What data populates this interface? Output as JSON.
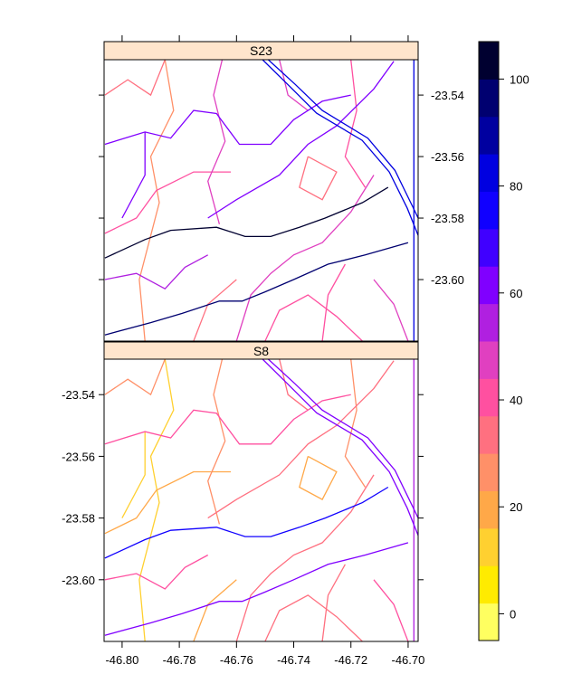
{
  "panels": [
    {
      "label": "S23",
      "key": "S23"
    },
    {
      "label": "S8",
      "key": "S8"
    }
  ],
  "x_axis": {
    "ticks": [
      -46.8,
      -46.78,
      -46.76,
      -46.74,
      -46.72,
      -46.7
    ],
    "tick_labels": [
      "-46.80",
      "-46.78",
      "-46.76",
      "-46.74",
      "-46.72",
      "-46.70"
    ],
    "range": [
      -46.8063,
      -46.6965
    ]
  },
  "y_axis": {
    "ticks": [
      -23.54,
      -23.56,
      -23.58,
      -23.6
    ],
    "tick_labels": [
      "-23.54",
      "-23.56",
      "-23.58",
      "-23.60"
    ],
    "range": [
      -23.62,
      -23.5285
    ]
  },
  "strip_color": "#FFE5CC",
  "colorkey": {
    "range": [
      -5,
      107
    ],
    "ticks": [
      0,
      20,
      40,
      60,
      80,
      100
    ],
    "tick_labels": [
      "0",
      "20",
      "40",
      "60",
      "80",
      "100"
    ],
    "colors": [
      "#FFFF60",
      "#FFEB00",
      "#FFD030",
      "#FFA848",
      "#FF9068",
      "#FF7080",
      "#FF50A0",
      "#E040C0",
      "#B020E0",
      "#8000FF",
      "#4000FF",
      "#1000FF",
      "#0000E0",
      "#0000A0",
      "#000070",
      "#000030"
    ]
  },
  "roads": [
    {
      "coords": [
        [
          -46.806,
          -23.593
        ],
        [
          -46.792,
          -23.587
        ],
        [
          -46.783,
          -23.584
        ],
        [
          -46.767,
          -23.583
        ],
        [
          -46.757,
          -23.586
        ],
        [
          -46.748,
          -23.586
        ],
        [
          -46.738,
          -23.583
        ],
        [
          -46.729,
          -23.58
        ],
        [
          -46.716,
          -23.575
        ],
        [
          -46.707,
          -23.57
        ]
      ],
      "S23": 100,
      "S8": 72
    },
    {
      "coords": [
        [
          -46.806,
          -23.618
        ],
        [
          -46.79,
          -23.614
        ],
        [
          -46.779,
          -23.611
        ],
        [
          -46.766,
          -23.607
        ],
        [
          -46.758,
          -23.607
        ],
        [
          -46.75,
          -23.604
        ],
        [
          -46.74,
          -23.6
        ],
        [
          -46.728,
          -23.595
        ],
        [
          -46.715,
          -23.592
        ],
        [
          -46.7,
          -23.588
        ]
      ],
      "S23": 95,
      "S8": 60
    },
    {
      "coords": [
        [
          -46.7509,
          -23.5285
        ],
        [
          -46.7415,
          -23.5371
        ],
        [
          -46.732,
          -23.5459
        ],
        [
          -46.7161,
          -23.5547
        ],
        [
          -46.7066,
          -23.565
        ],
        [
          -46.7003,
          -23.5768
        ],
        [
          -46.6965,
          -23.5856
        ]
      ],
      "S23": 80,
      "S8": 62
    },
    {
      "coords": [
        [
          -46.7489,
          -23.5285
        ],
        [
          -46.7395,
          -23.5365
        ],
        [
          -46.73,
          -23.545
        ],
        [
          -46.7141,
          -23.554
        ],
        [
          -46.7046,
          -23.5645
        ],
        [
          -46.6983,
          -23.5765
        ],
        [
          -46.6965,
          -23.58
        ]
      ],
      "S23": 80,
      "S8": 60
    },
    {
      "coords": [
        [
          -46.698,
          -23.5285
        ],
        [
          -46.698,
          -23.62
        ]
      ],
      "S23": 85,
      "S8": 55
    },
    {
      "coords": [
        [
          -46.806,
          -23.556
        ],
        [
          -46.792,
          -23.552
        ],
        [
          -46.783,
          -23.554
        ],
        [
          -46.775,
          -23.545
        ],
        [
          -46.767,
          -23.546
        ],
        [
          -46.759,
          -23.556
        ],
        [
          -46.748,
          -23.556
        ],
        [
          -46.74,
          -23.548
        ],
        [
          -46.73,
          -23.542
        ],
        [
          -46.72,
          -23.54
        ]
      ],
      "S23": 62,
      "S8": 38
    },
    {
      "coords": [
        [
          -46.792,
          -23.552
        ],
        [
          -46.792,
          -23.566
        ],
        [
          -46.8,
          -23.58
        ]
      ],
      "S23": 60,
      "S8": 12
    },
    {
      "coords": [
        [
          -46.77,
          -23.58
        ],
        [
          -46.76,
          -23.574
        ],
        [
          -46.745,
          -23.566
        ],
        [
          -46.735,
          -23.556
        ],
        [
          -46.725,
          -23.55
        ],
        [
          -46.712,
          -23.538
        ],
        [
          -46.705,
          -23.529
        ]
      ],
      "S23": 58,
      "S8": 30
    },
    {
      "coords": [
        [
          -46.785,
          -23.5285
        ],
        [
          -46.782,
          -23.545
        ],
        [
          -46.79,
          -23.56
        ],
        [
          -46.787,
          -23.575
        ],
        [
          -46.794,
          -23.6
        ],
        [
          -46.792,
          -23.62
        ]
      ],
      "S23": 28,
      "S8": 10
    },
    {
      "coords": [
        [
          -46.806,
          -23.6
        ],
        [
          -46.795,
          -23.598
        ],
        [
          -46.785,
          -23.603
        ],
        [
          -46.778,
          -23.596
        ],
        [
          -46.77,
          -23.592
        ]
      ],
      "S23": 55,
      "S8": 40
    },
    {
      "coords": [
        [
          -46.765,
          -23.5285
        ],
        [
          -46.768,
          -23.54
        ],
        [
          -46.764,
          -23.555
        ],
        [
          -46.77,
          -23.568
        ],
        [
          -46.766,
          -23.582
        ]
      ],
      "S23": 45,
      "S8": 25
    },
    {
      "coords": [
        [
          -46.76,
          -23.62
        ],
        [
          -46.755,
          -23.605
        ],
        [
          -46.748,
          -23.598
        ],
        [
          -46.74,
          -23.592
        ],
        [
          -46.73,
          -23.588
        ],
        [
          -46.72,
          -23.578
        ],
        [
          -46.712,
          -23.566
        ]
      ],
      "S23": 50,
      "S8": 35
    },
    {
      "coords": [
        [
          -46.735,
          -23.56
        ],
        [
          -46.725,
          -23.565
        ],
        [
          -46.73,
          -23.574
        ],
        [
          -46.738,
          -23.57
        ],
        [
          -46.735,
          -23.56
        ]
      ],
      "S23": 30,
      "S8": 22
    },
    {
      "coords": [
        [
          -46.806,
          -23.585
        ],
        [
          -46.795,
          -23.58
        ],
        [
          -46.788,
          -23.571
        ],
        [
          -46.775,
          -23.565
        ],
        [
          -46.762,
          -23.565
        ]
      ],
      "S23": 38,
      "S8": 18
    },
    {
      "coords": [
        [
          -46.75,
          -23.62
        ],
        [
          -46.745,
          -23.61
        ],
        [
          -46.735,
          -23.605
        ],
        [
          -46.725,
          -23.612
        ],
        [
          -46.716,
          -23.62
        ]
      ],
      "S23": 42,
      "S8": 30
    },
    {
      "coords": [
        [
          -46.72,
          -23.5285
        ],
        [
          -46.718,
          -23.545
        ],
        [
          -46.722,
          -23.56
        ],
        [
          -46.715,
          -23.57
        ]
      ],
      "S23": 40,
      "S8": 28
    },
    {
      "coords": [
        [
          -46.806,
          -23.54
        ],
        [
          -46.798,
          -23.535
        ],
        [
          -46.79,
          -23.54
        ],
        [
          -46.785,
          -23.5285
        ]
      ],
      "S23": 35,
      "S8": 25
    },
    {
      "coords": [
        [
          -46.745,
          -23.5285
        ],
        [
          -46.742,
          -23.54
        ],
        [
          -46.735,
          -23.545
        ]
      ],
      "S23": 48,
      "S8": 32
    },
    {
      "coords": [
        [
          -46.712,
          -23.6
        ],
        [
          -46.705,
          -23.608
        ],
        [
          -46.7,
          -23.62
        ]
      ],
      "S23": 45,
      "S8": 40
    },
    {
      "coords": [
        [
          -46.73,
          -23.62
        ],
        [
          -46.728,
          -23.605
        ],
        [
          -46.722,
          -23.595
        ]
      ],
      "S23": 40,
      "S8": 30
    },
    {
      "coords": [
        [
          -46.775,
          -23.62
        ],
        [
          -46.77,
          -23.608
        ],
        [
          -46.76,
          -23.6
        ]
      ],
      "S23": 35,
      "S8": 20
    }
  ]
}
